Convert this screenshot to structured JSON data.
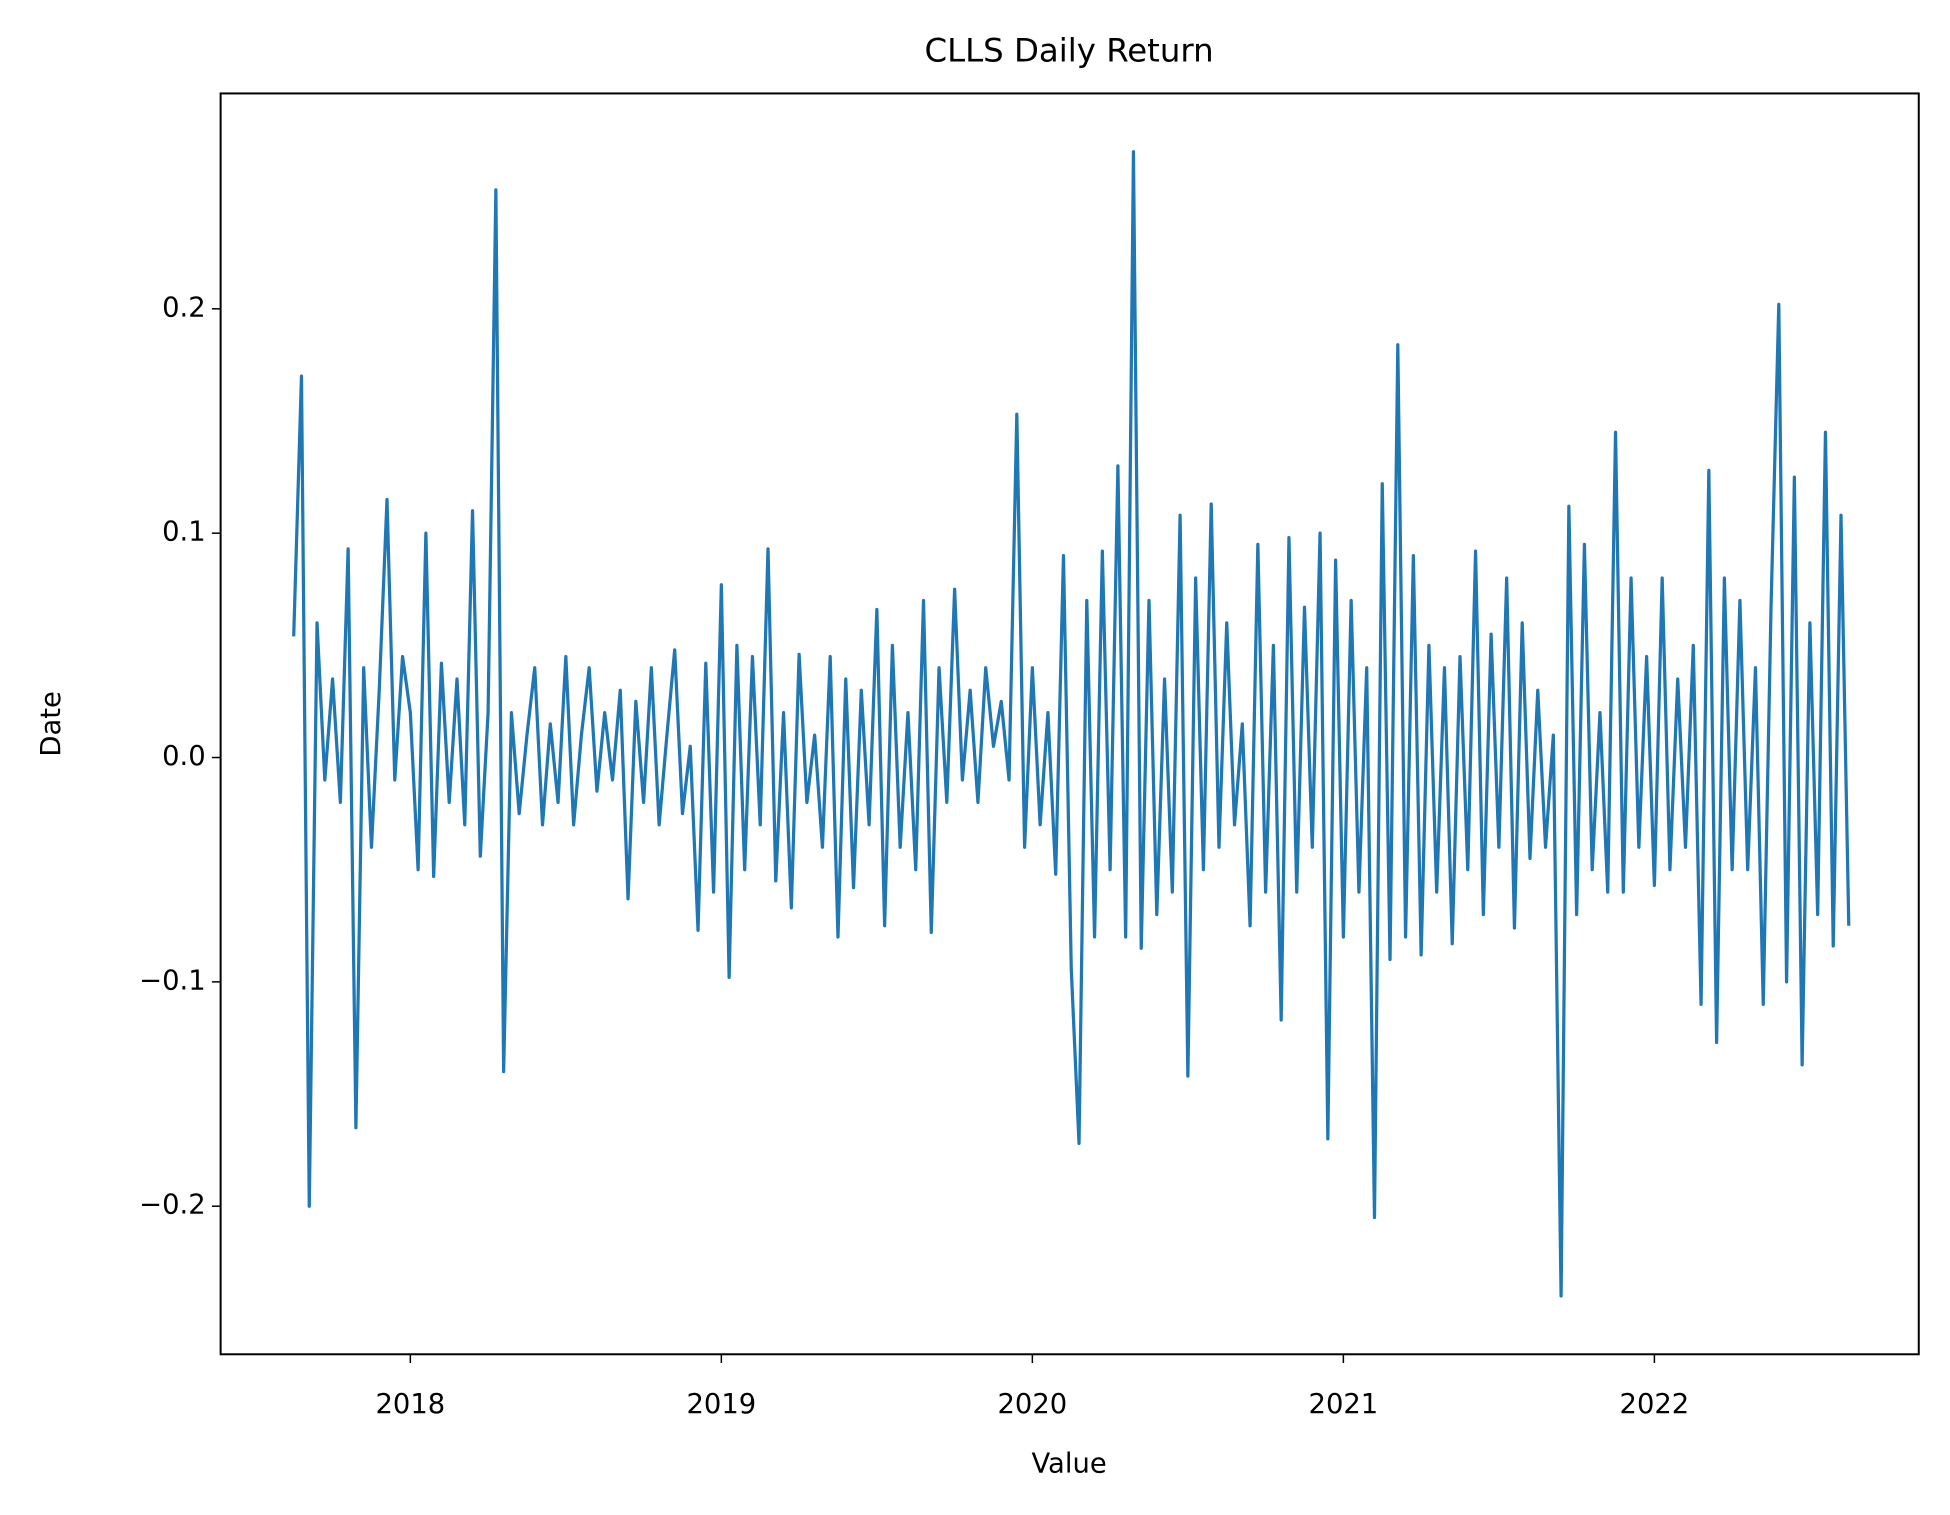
{
  "chart_data": {
    "type": "line",
    "title": "CLLS Daily Return",
    "xlabel": "Value",
    "ylabel": "Date",
    "color": "#1f77b4",
    "x": [
      2017.625,
      2017.65,
      2017.675,
      2017.7,
      2017.725,
      2017.75,
      2017.775,
      2017.8,
      2017.825,
      2017.85,
      2017.875,
      2017.9,
      2017.925,
      2017.95,
      2017.975,
      2018,
      2018.025,
      2018.05,
      2018.075,
      2018.1,
      2018.125,
      2018.15,
      2018.175,
      2018.2,
      2018.225,
      2018.25,
      2018.275,
      2018.3,
      2018.325,
      2018.35,
      2018.375,
      2018.4,
      2018.425,
      2018.45,
      2018.475,
      2018.5,
      2018.525,
      2018.55,
      2018.575,
      2018.6,
      2018.625,
      2018.65,
      2018.675,
      2018.7,
      2018.725,
      2018.75,
      2018.775,
      2018.8,
      2018.825,
      2018.85,
      2018.875,
      2018.9,
      2018.925,
      2018.95,
      2018.975,
      2019,
      2019.025,
      2019.05,
      2019.075,
      2019.1,
      2019.125,
      2019.15,
      2019.175,
      2019.2,
      2019.225,
      2019.25,
      2019.275,
      2019.3,
      2019.325,
      2019.35,
      2019.375,
      2019.4,
      2019.425,
      2019.45,
      2019.475,
      2019.5,
      2019.525,
      2019.55,
      2019.575,
      2019.6,
      2019.625,
      2019.65,
      2019.675,
      2019.7,
      2019.725,
      2019.75,
      2019.775,
      2019.8,
      2019.825,
      2019.85,
      2019.875,
      2019.9,
      2019.925,
      2019.95,
      2019.975,
      2020,
      2020.025,
      2020.05,
      2020.075,
      2020.1,
      2020.125,
      2020.15,
      2020.175,
      2020.2,
      2020.225,
      2020.25,
      2020.275,
      2020.3,
      2020.325,
      2020.35,
      2020.375,
      2020.4,
      2020.425,
      2020.45,
      2020.475,
      2020.5,
      2020.525,
      2020.55,
      2020.575,
      2020.6,
      2020.625,
      2020.65,
      2020.675,
      2020.7,
      2020.725,
      2020.75,
      2020.775,
      2020.8,
      2020.825,
      2020.85,
      2020.875,
      2020.9,
      2020.925,
      2020.95,
      2020.975,
      2021,
      2021.025,
      2021.05,
      2021.075,
      2021.1,
      2021.125,
      2021.15,
      2021.175,
      2021.2,
      2021.225,
      2021.25,
      2021.275,
      2021.3,
      2021.325,
      2021.35,
      2021.375,
      2021.4,
      2021.425,
      2021.45,
      2021.475,
      2021.5,
      2021.525,
      2021.55,
      2021.575,
      2021.6,
      2021.625,
      2021.65,
      2021.675,
      2021.7,
      2021.725,
      2021.75,
      2021.775,
      2021.8,
      2021.825,
      2021.85,
      2021.875,
      2021.9,
      2021.925,
      2021.95,
      2021.975,
      2022,
      2022.025,
      2022.05,
      2022.075,
      2022.1,
      2022.125,
      2022.15,
      2022.175,
      2022.2,
      2022.225,
      2022.25,
      2022.275,
      2022.3,
      2022.325,
      2022.35,
      2022.375,
      2022.4,
      2022.425,
      2022.45,
      2022.475,
      2022.5,
      2022.525,
      2022.55,
      2022.575,
      2022.6,
      2022.625
    ],
    "values": [
      0.054,
      0.17,
      -0.2,
      0.06,
      -0.01,
      0.035,
      -0.02,
      0.093,
      -0.165,
      0.04,
      -0.04,
      0.03,
      0.115,
      -0.01,
      0.045,
      0.02,
      -0.05,
      0.1,
      -0.053,
      0.042,
      -0.02,
      0.035,
      -0.03,
      0.11,
      -0.044,
      0.02,
      0.253,
      -0.14,
      0.02,
      -0.025,
      0.01,
      0.04,
      -0.03,
      0.015,
      -0.02,
      0.045,
      -0.03,
      0.01,
      0.04,
      -0.015,
      0.02,
      -0.01,
      0.03,
      -0.063,
      0.025,
      -0.02,
      0.04,
      -0.03,
      0.01,
      0.048,
      -0.025,
      0.005,
      -0.077,
      0.042,
      -0.06,
      0.077,
      -0.098,
      0.05,
      -0.05,
      0.045,
      -0.03,
      0.093,
      -0.055,
      0.02,
      -0.067,
      0.046,
      -0.02,
      0.01,
      -0.04,
      0.045,
      -0.08,
      0.035,
      -0.058,
      0.03,
      -0.03,
      0.066,
      -0.075,
      0.05,
      -0.04,
      0.02,
      -0.05,
      0.07,
      -0.078,
      0.04,
      -0.02,
      0.075,
      -0.01,
      0.03,
      -0.02,
      0.04,
      0.005,
      0.025,
      -0.01,
      0.153,
      -0.04,
      0.04,
      -0.03,
      0.02,
      -0.052,
      0.09,
      -0.094,
      -0.172,
      0.07,
      -0.08,
      0.092,
      -0.05,
      0.13,
      -0.08,
      0.27,
      -0.085,
      0.07,
      -0.07,
      0.035,
      -0.06,
      0.108,
      -0.142,
      0.08,
      -0.05,
      0.113,
      -0.04,
      0.06,
      -0.03,
      0.015,
      -0.075,
      0.095,
      -0.06,
      0.05,
      -0.117,
      0.098,
      -0.06,
      0.067,
      -0.04,
      0.1,
      -0.17,
      0.088,
      -0.08,
      0.07,
      -0.06,
      0.04,
      -0.205,
      0.122,
      -0.09,
      0.184,
      -0.08,
      0.09,
      -0.088,
      0.05,
      -0.06,
      0.04,
      -0.083,
      0.045,
      -0.05,
      0.092,
      -0.07,
      0.055,
      -0.04,
      0.08,
      -0.076,
      0.06,
      -0.045,
      0.03,
      -0.04,
      0.01,
      -0.24,
      0.112,
      -0.07,
      0.095,
      -0.05,
      0.02,
      -0.06,
      0.145,
      -0.06,
      0.08,
      -0.04,
      0.045,
      -0.057,
      0.08,
      -0.05,
      0.035,
      -0.04,
      0.05,
      -0.11,
      0.128,
      -0.127,
      0.08,
      -0.05,
      0.07,
      -0.05,
      0.04,
      -0.11,
      0.067,
      0.202,
      -0.1,
      0.125,
      -0.137,
      0.06,
      -0.07,
      0.145,
      -0.084,
      0.108,
      -0.075
    ],
    "xlim": [
      2017.39,
      2022.85
    ],
    "xticks": [
      2018,
      2019,
      2020,
      2021,
      2022
    ],
    "ylim": [
      -0.266,
      0.296
    ],
    "yticks": [
      {
        "value": -0.2,
        "label": "−0.2"
      },
      {
        "value": -0.1,
        "label": "−0.1"
      },
      {
        "value": 0,
        "label": "0.0"
      },
      {
        "value": 0.1,
        "label": "0.1"
      },
      {
        "value": 0.2,
        "label": "0.2"
      }
    ],
    "grid": false
  }
}
